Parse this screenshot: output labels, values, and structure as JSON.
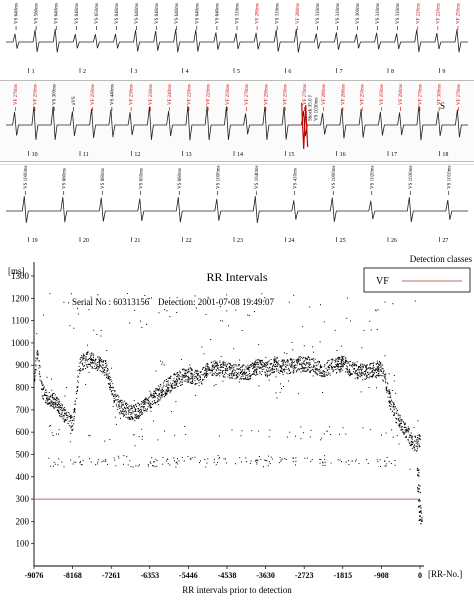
{
  "egm_strips": [
    {
      "id": "strip1",
      "markers": [
        {
          "label": "VS 640ms",
          "color": "#000000"
        },
        {
          "label": "VS 560ms",
          "color": "#000000"
        },
        {
          "label": "VS 640ms",
          "color": "#000000"
        },
        {
          "label": "VS 640ms",
          "color": "#000000"
        },
        {
          "label": "VS 650ms",
          "color": "#000000"
        },
        {
          "label": "VS 640ms",
          "color": "#000000"
        },
        {
          "label": "VS 640ms",
          "color": "#000000"
        },
        {
          "label": "VS 640ms",
          "color": "#000000"
        },
        {
          "label": "VS 640ms",
          "color": "#000000"
        },
        {
          "label": "VS 640ms",
          "color": "#000000"
        },
        {
          "label": "VS 640ms",
          "color": "#000000"
        },
        {
          "label": "VS 310ms",
          "color": "#000000"
        },
        {
          "label": "VF 280ms",
          "color": "#cc0000"
        },
        {
          "label": "VS 310ms",
          "color": "#000000"
        },
        {
          "label": "VF 280ms",
          "color": "#cc0000"
        },
        {
          "label": "VS 310ms",
          "color": "#000000"
        },
        {
          "label": "VS 310ms",
          "color": "#000000"
        },
        {
          "label": "VS 300ms",
          "color": "#000000"
        },
        {
          "label": "VS 310ms",
          "color": "#000000"
        },
        {
          "label": "VS 310ms",
          "color": "#000000"
        },
        {
          "label": "VF 220ms",
          "color": "#cc0000"
        },
        {
          "label": "VF 220ms",
          "color": "#cc0000"
        },
        {
          "label": "VF 250ms",
          "color": "#cc0000"
        }
      ],
      "beat_numbers": [
        "1",
        "2",
        "3",
        "4",
        "5",
        "6",
        "7",
        "8",
        "9"
      ]
    },
    {
      "id": "strip2",
      "markers": [
        {
          "label": "VF 270ms",
          "color": "#cc0000"
        },
        {
          "label": "VF 250ms",
          "color": "#cc0000"
        },
        {
          "label": "VS 300ms",
          "color": "#000000"
        },
        {
          "label": "aVS",
          "color": "#000000"
        },
        {
          "label": "VF 250ms",
          "color": "#cc0000"
        },
        {
          "label": "VS 440ms",
          "color": "#000000"
        },
        {
          "label": "VF 230ms",
          "color": "#cc0000"
        },
        {
          "label": "VF 230ms",
          "color": "#cc0000"
        },
        {
          "label": "VF 240ms",
          "color": "#cc0000"
        },
        {
          "label": "VF 220ms",
          "color": "#cc0000"
        },
        {
          "label": "VF 220ms",
          "color": "#cc0000"
        },
        {
          "label": "VF 250ms",
          "color": "#cc0000"
        },
        {
          "label": "VF 270ms",
          "color": "#cc0000"
        },
        {
          "label": "VF 290ms",
          "color": "#cc0000"
        },
        {
          "label": "VF 250ms",
          "color": "#cc0000"
        },
        {
          "label": "VF 270ms",
          "color": "#cc0000"
        },
        {
          "label": "VF 280ms",
          "color": "#cc0000"
        },
        {
          "label": "VF 260ms",
          "color": "#cc0000"
        },
        {
          "label": "VF 250ms",
          "color": "#cc0000"
        },
        {
          "label": "VF 250ms",
          "color": "#cc0000"
        },
        {
          "label": "VF 290ms",
          "color": "#cc0000"
        },
        {
          "label": "VF 270ms",
          "color": "#cc0000"
        },
        {
          "label": "VF 300ms",
          "color": "#cc0000"
        },
        {
          "label": "VF 270ms",
          "color": "#cc0000"
        }
      ],
      "shock_label": "Shock 35.0 J",
      "shock_sub": "VS 1030ms",
      "annotation": "S",
      "beat_numbers": [
        "10",
        "11",
        "12",
        "13",
        "14",
        "15",
        "16",
        "17",
        "18"
      ]
    },
    {
      "id": "strip3",
      "markers": [
        {
          "label": "VS 1000ms",
          "color": "#000000"
        },
        {
          "label": "VS 660ms",
          "color": "#000000"
        },
        {
          "label": "VS 660ms",
          "color": "#000000"
        },
        {
          "label": "VS 650ms",
          "color": "#000000"
        },
        {
          "label": "VS 660ms",
          "color": "#000000"
        },
        {
          "label": "VS 1000ms",
          "color": "#000000"
        },
        {
          "label": "VS 1040ms",
          "color": "#000000"
        },
        {
          "label": "VS 410ms",
          "color": "#000000"
        },
        {
          "label": "VS 1000ms",
          "color": "#000000"
        },
        {
          "label": "VS 1020ms",
          "color": "#000000"
        },
        {
          "label": "VS 1030ms",
          "color": "#000000"
        },
        {
          "label": "VS 1010ms",
          "color": "#000000"
        }
      ],
      "beat_numbers": [
        "19",
        "20",
        "21",
        "22",
        "23",
        "24",
        "25",
        "26",
        "27"
      ]
    }
  ],
  "chart_data": {
    "type": "scatter",
    "title": "RR Intervals",
    "serial_text": "Serial No : 60313156",
    "detection_text": "Detection:   2001-07-08 19:49:07",
    "ylabel": "[ms]",
    "xlabel": "RR intervals prior to detection",
    "x_unit_label": "[RR-No.]",
    "xlim": [
      -9076,
      0
    ],
    "ylim": [
      0,
      1300
    ],
    "x_ticks": [
      -9076,
      -8168,
      -7261,
      -6353,
      -5446,
      -4538,
      -3630,
      -2723,
      -1815,
      -908,
      0
    ],
    "y_ticks": [
      100,
      200,
      300,
      400,
      500,
      600,
      700,
      800,
      900,
      1000,
      1100,
      1200,
      1300
    ],
    "grid": false,
    "legend": {
      "title": "Detection classes",
      "entries": [
        {
          "name": "VF",
          "color": "#cc6666"
        }
      ],
      "placement": "top-right"
    },
    "threshold": {
      "name": "VF",
      "y": 300,
      "color": "#cc6666"
    },
    "main_trend": [
      [
        -9076,
        850
      ],
      [
        -9000,
        960
      ],
      [
        -8900,
        790
      ],
      [
        -8800,
        760
      ],
      [
        -8700,
        750
      ],
      [
        -8600,
        740
      ],
      [
        -8450,
        700
      ],
      [
        -8300,
        660
      ],
      [
        -8168,
        640
      ],
      [
        -8000,
        910
      ],
      [
        -7800,
        930
      ],
      [
        -7600,
        910
      ],
      [
        -7400,
        890
      ],
      [
        -7261,
        800
      ],
      [
        -7150,
        740
      ],
      [
        -7000,
        710
      ],
      [
        -6800,
        690
      ],
      [
        -6600,
        700
      ],
      [
        -6353,
        740
      ],
      [
        -6200,
        770
      ],
      [
        -6000,
        800
      ],
      [
        -5800,
        830
      ],
      [
        -5600,
        850
      ],
      [
        -5446,
        860
      ],
      [
        -5200,
        840
      ],
      [
        -5000,
        880
      ],
      [
        -4800,
        890
      ],
      [
        -4538,
        880
      ],
      [
        -4300,
        870
      ],
      [
        -4000,
        870
      ],
      [
        -3800,
        900
      ],
      [
        -3630,
        880
      ],
      [
        -3400,
        910
      ],
      [
        -3200,
        890
      ],
      [
        -3000,
        900
      ],
      [
        -2723,
        910
      ],
      [
        -2500,
        900
      ],
      [
        -2300,
        880
      ],
      [
        -2000,
        900
      ],
      [
        -1815,
        910
      ],
      [
        -1600,
        880
      ],
      [
        -1300,
        870
      ],
      [
        -1100,
        880
      ],
      [
        -908,
        880
      ],
      [
        -800,
        820
      ],
      [
        -700,
        730
      ],
      [
        -600,
        690
      ],
      [
        -500,
        650
      ],
      [
        -400,
        620
      ],
      [
        -300,
        600
      ],
      [
        -200,
        560
      ],
      [
        -100,
        550
      ],
      [
        0,
        560
      ]
    ],
    "scatter_band_low": [
      480,
      460
    ],
    "scatter_band_mid": [
      580,
      620
    ],
    "terminal_drop": [
      [
        -60,
        420
      ],
      [
        -40,
        350
      ],
      [
        -20,
        280
      ],
      [
        -10,
        230
      ],
      [
        0,
        200
      ]
    ]
  }
}
